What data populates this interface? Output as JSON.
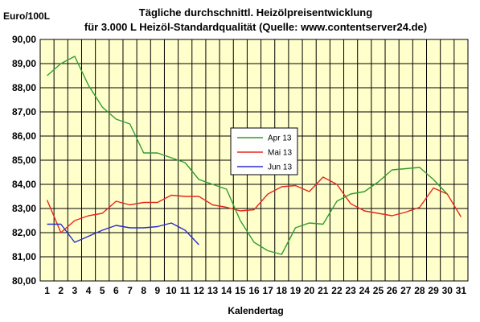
{
  "chart_data": {
    "type": "line",
    "title_lines": [
      "Tägliche durchschnittl. Heizölpreisentwicklung",
      "für 3.000 L Heizöl-Standardqualität (Quelle: www.contentserver24.de)"
    ],
    "ylabel": "Euro/100L",
    "xlabel": "Kalendertag",
    "ylim": [
      80,
      90
    ],
    "y_ticks": [
      "80,00",
      "81,00",
      "82,00",
      "83,00",
      "84,00",
      "85,00",
      "86,00",
      "87,00",
      "88,00",
      "89,00",
      "90,00"
    ],
    "x": [
      1,
      2,
      3,
      4,
      5,
      6,
      7,
      8,
      9,
      10,
      11,
      12,
      13,
      14,
      15,
      16,
      17,
      18,
      19,
      20,
      21,
      22,
      23,
      24,
      25,
      26,
      27,
      28,
      29,
      30,
      31
    ],
    "grid": true,
    "background_color": "#FFFFCC",
    "legend_position": "center",
    "series": [
      {
        "name": "Apr 13",
        "color": "#2E9E2E",
        "values": [
          88.5,
          89.0,
          89.3,
          88.1,
          87.2,
          86.7,
          86.5,
          85.3,
          85.3,
          85.1,
          84.9,
          84.2,
          84.0,
          83.8,
          82.5,
          81.6,
          81.25,
          81.1,
          82.2,
          82.4,
          82.35,
          83.3,
          83.6,
          83.7,
          84.1,
          84.6,
          84.65,
          84.7,
          84.2,
          83.6,
          null
        ]
      },
      {
        "name": "Mai 13",
        "color": "#E8261B",
        "values": [
          83.35,
          82.0,
          82.5,
          82.7,
          82.8,
          83.3,
          83.15,
          83.25,
          83.25,
          83.55,
          83.5,
          83.5,
          83.15,
          83.05,
          82.9,
          82.95,
          83.6,
          83.9,
          83.95,
          83.7,
          84.3,
          84.0,
          83.2,
          82.9,
          82.8,
          82.7,
          82.85,
          83.05,
          83.85,
          83.6,
          82.65
        ]
      },
      {
        "name": "Jun 13",
        "color": "#2B2BD0",
        "values": [
          82.35,
          82.35,
          81.6,
          81.85,
          82.1,
          82.3,
          82.2,
          82.2,
          82.25,
          82.4,
          82.1,
          81.5,
          null,
          null,
          null,
          null,
          null,
          null,
          null,
          null,
          null,
          null,
          null,
          null,
          null,
          null,
          null,
          null,
          null,
          null,
          null
        ]
      }
    ]
  }
}
